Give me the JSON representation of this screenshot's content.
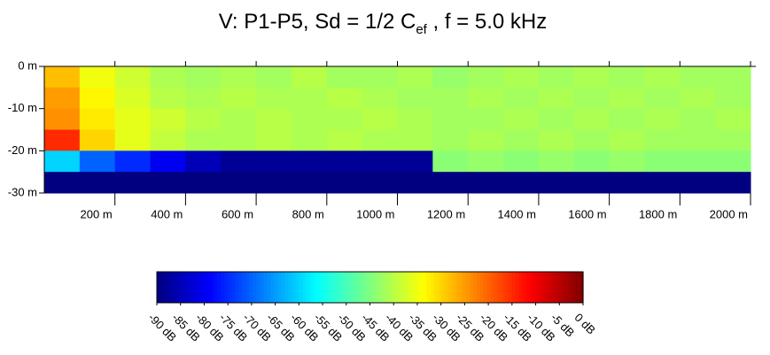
{
  "chart_data": {
    "type": "heatmap",
    "title": "V: P1-P5, Sd = 1/2 C",
    "title_subscript": "ef",
    "title_end": " , f = 5.0 kHz",
    "colormap": "jet",
    "x": [
      50,
      150,
      250,
      350,
      450,
      550,
      650,
      750,
      850,
      950,
      1050,
      1150,
      1250,
      1350,
      1450,
      1550,
      1650,
      1750,
      1850,
      1950
    ],
    "y": [
      -2.5,
      -7.5,
      -12.5,
      -17.5,
      -22.5,
      -27.5
    ],
    "z": [
      [
        -28,
        -35,
        -38,
        -41,
        -42,
        -41,
        -42,
        -40,
        -42,
        -42,
        -41,
        -43,
        -42,
        -41,
        -42,
        -41,
        -42,
        -41,
        -42,
        -42
      ],
      [
        -25,
        -33,
        -37,
        -40,
        -41,
        -40,
        -41,
        -41,
        -40,
        -41,
        -42,
        -42,
        -41,
        -42,
        -41,
        -42,
        -41,
        -42,
        -41,
        -42
      ],
      [
        -24,
        -32,
        -36,
        -38,
        -40,
        -41,
        -40,
        -41,
        -41,
        -40,
        -41,
        -42,
        -42,
        -41,
        -42,
        -41,
        -42,
        -41,
        -42,
        -41
      ],
      [
        -15,
        -30,
        -36,
        -39,
        -41,
        -41,
        -40,
        -41,
        -40,
        -41,
        -41,
        -42,
        -41,
        -42,
        -41,
        -42,
        -41,
        -42,
        -42,
        -42
      ],
      [
        -60,
        -70,
        -75,
        -80,
        -85,
        -88,
        -88,
        -88,
        -88,
        -88,
        -88,
        -44,
        -43,
        -44,
        -43,
        -44,
        -43,
        -44,
        -44,
        -44
      ],
      [
        -90,
        -90,
        -90,
        -90,
        -90,
        -90,
        -90,
        -90,
        -90,
        -90,
        -90,
        -90,
        -90,
        -90,
        -90,
        -90,
        -90,
        -90,
        -90,
        -90
      ]
    ],
    "xlim": [
      0,
      2015
    ],
    "ylim": [
      -30,
      0
    ],
    "xticks": [
      {
        "value": 200,
        "label": "200 m"
      },
      {
        "value": 400,
        "label": "400 m"
      },
      {
        "value": 600,
        "label": "600 m"
      },
      {
        "value": 800,
        "label": "800 m"
      },
      {
        "value": 1000,
        "label": "1000 m"
      },
      {
        "value": 1200,
        "label": "1200 m"
      },
      {
        "value": 1400,
        "label": "1400 m"
      },
      {
        "value": 1600,
        "label": "1600 m"
      },
      {
        "value": 1800,
        "label": "1800 m"
      },
      {
        "value": 2000,
        "label": "2000 m"
      }
    ],
    "yticks": [
      {
        "value": 0,
        "label": "0 m"
      },
      {
        "value": -10,
        "label": "-10 m"
      },
      {
        "value": -20,
        "label": "-20 m"
      },
      {
        "value": -30,
        "label": "-30 m"
      }
    ],
    "colorbar": {
      "lim": [
        -90,
        0
      ],
      "ticks": [
        {
          "value": -90,
          "label": "-90 dB"
        },
        {
          "value": -85,
          "label": "-85 dB"
        },
        {
          "value": -80,
          "label": "-80 dB"
        },
        {
          "value": -75,
          "label": "-75 dB"
        },
        {
          "value": -70,
          "label": "-70 dB"
        },
        {
          "value": -65,
          "label": "-65 dB"
        },
        {
          "value": -60,
          "label": "-60 dB"
        },
        {
          "value": -55,
          "label": "-55 dB"
        },
        {
          "value": -50,
          "label": "-50 dB"
        },
        {
          "value": -45,
          "label": "-45 dB"
        },
        {
          "value": -40,
          "label": "-40 dB"
        },
        {
          "value": -35,
          "label": "-35 dB"
        },
        {
          "value": -30,
          "label": "-30 dB"
        },
        {
          "value": -25,
          "label": "-25 dB"
        },
        {
          "value": -20,
          "label": "-20 dB"
        },
        {
          "value": -15,
          "label": "-15 dB"
        },
        {
          "value": -10,
          "label": "-10 dB"
        },
        {
          "value": -5,
          "label": "-5 dB"
        },
        {
          "value": 0,
          "label": "0 dB"
        }
      ]
    }
  }
}
